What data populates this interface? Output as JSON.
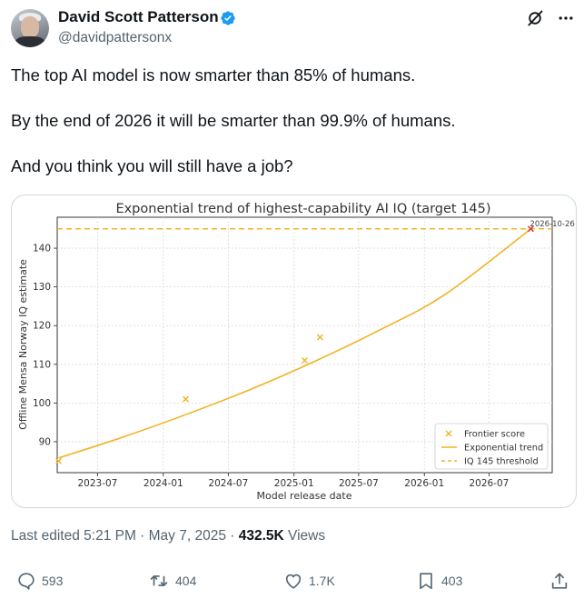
{
  "author": {
    "name": "David Scott Patterson",
    "handle": "@davidpattersonx"
  },
  "post": {
    "line1": "The top AI model is now smarter than 85% of humans.",
    "line2": "By the end of 2026 it will be smarter than 99.9% of humans.",
    "line3": "And you think you will still have a job?"
  },
  "chart_data": {
    "type": "scatter",
    "title": "Exponential trend of highest-capability AI IQ (target 145)",
    "xlabel": "Model release date",
    "ylabel": "Offline Mensa Norway IQ estimate",
    "x_tick_labels": [
      "2023-07",
      "2024-01",
      "2024-07",
      "2025-01",
      "2025-07",
      "2026-01",
      "2026-07"
    ],
    "y_tick_labels": [
      "90",
      "100",
      "110",
      "120",
      "130",
      "140"
    ],
    "xlim": [
      "2023-03-10",
      "2026-12-25"
    ],
    "ylim": [
      82,
      148
    ],
    "series": [
      {
        "name": "Frontier score",
        "marker": "x",
        "color": "#f0b323",
        "points": [
          {
            "x": "2023-03-14",
            "y": 85
          },
          {
            "x": "2024-03-04",
            "y": 101
          },
          {
            "x": "2025-01-31",
            "y": 111
          },
          {
            "x": "2025-03-15",
            "y": 117
          }
        ]
      },
      {
        "name": "Exponential trend",
        "style": "line",
        "color": "#f0b323",
        "x": [
          "2023-03-14",
          "2023-09-01",
          "2024-03-01",
          "2024-09-01",
          "2025-03-01",
          "2025-09-01",
          "2026-03-01",
          "2026-10-26"
        ],
        "y": [
          85.8,
          90.9,
          96.9,
          103.5,
          110.8,
          119.0,
          128.1,
          145.0
        ]
      },
      {
        "name": "IQ 145 threshold",
        "style": "dashed",
        "color": "#f0b323",
        "y": 145
      }
    ],
    "annotations": [
      {
        "text": "2026-10-26",
        "x": "2026-10-26",
        "y": 145,
        "marker_color": "#d9342b"
      }
    ],
    "grid": true,
    "legend_position": "bottom-right"
  },
  "footer": {
    "edited": "Last edited 5:21 PM · May 7, 2025 · ",
    "views_count": "432.5K",
    "views_label": " Views"
  },
  "actions": {
    "replies": "593",
    "reposts": "404",
    "likes": "1.7K",
    "bookmarks": "403"
  },
  "colors": {
    "accent": "#1d9bf0",
    "muted": "#536471",
    "text": "#0f1419",
    "chart": "#f0b323"
  },
  "icons": [
    "grok-icon",
    "more-icon",
    "verified-badge-icon",
    "reply-icon",
    "repost-icon",
    "like-icon",
    "bookmark-icon",
    "share-icon"
  ]
}
